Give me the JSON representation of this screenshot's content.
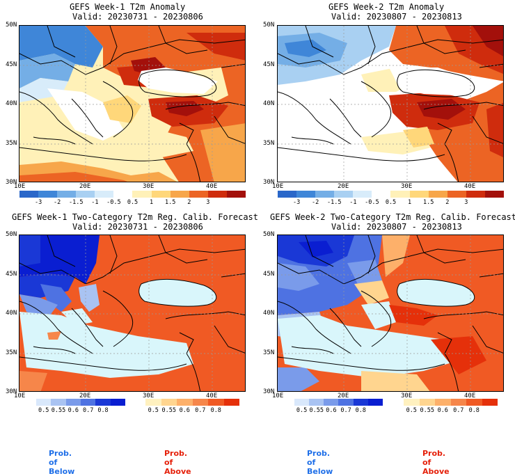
{
  "panels": [
    {
      "title": "GEFS Week-1 T2m Anomaly",
      "valid": "Valid: 20230731 - 20230806"
    },
    {
      "title": "GEFS Week-2 T2m Anomaly",
      "valid": "Valid: 20230807 - 20230813"
    },
    {
      "title": "GEFS Week-1 Two-Category T2m Reg. Calib. Forecast",
      "valid": "Valid: 20230731 - 20230806"
    },
    {
      "title": "GEFS Week-2 Two-Category T2m Reg. Calib. Forecast",
      "valid": "Valid: 20230807 - 20230813"
    }
  ],
  "lat_labels": [
    "50N",
    "45N",
    "40N",
    "35N",
    "30N"
  ],
  "lon_labels": [
    "10E",
    "20E",
    "30E",
    "40E"
  ],
  "anomaly_colorbar": {
    "ticks": [
      "-3",
      "-2",
      "-1.5",
      "-1",
      "-0.5",
      "0.5",
      "1",
      "1.5",
      "2",
      "3"
    ],
    "colors": [
      "#2a67c9",
      "#3f86d8",
      "#74aee6",
      "#a9d0f2",
      "#d8ecfa",
      "#ffffff",
      "#fff1b8",
      "#ffd77a",
      "#f7a64a",
      "#ec6424",
      "#cf2c0d",
      "#a3100b"
    ]
  },
  "prob_below": {
    "ticks": [
      "0.5",
      "0.55",
      "0.6",
      "0.7",
      "0.8"
    ],
    "colors": [
      "#d9e8fb",
      "#a9c3f2",
      "#7a9bea",
      "#4e72e2",
      "#1a38d6",
      "#0a1ed1"
    ],
    "label": "Prob. of Below",
    "label_color": "#1f6fe8"
  },
  "prob_above": {
    "ticks": [
      "0.5",
      "0.55",
      "0.6",
      "0.7",
      "0.8"
    ],
    "colors": [
      "#fff1bf",
      "#ffd58f",
      "#fdb06a",
      "#f6864a",
      "#f05a24",
      "#e5300a"
    ],
    "label": "Prob. of Above",
    "label_color": "#e5200a"
  }
}
